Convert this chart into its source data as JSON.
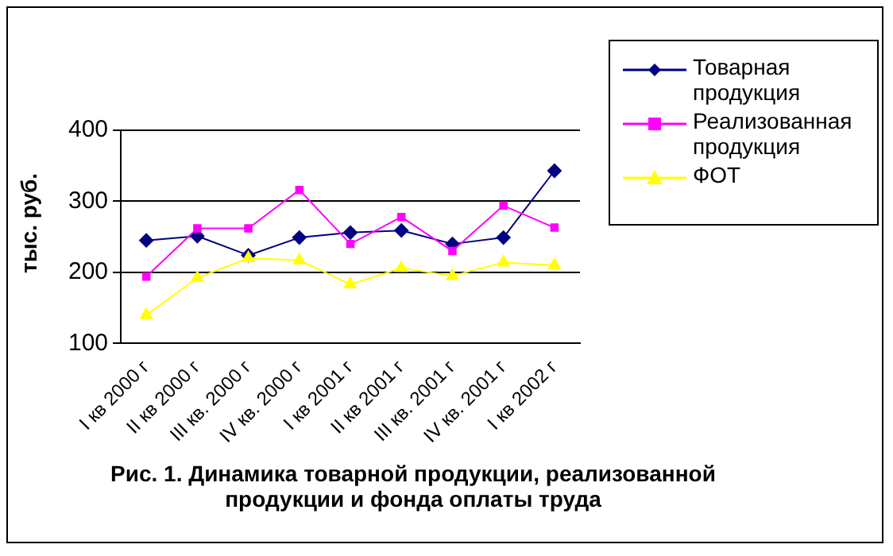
{
  "chart_data": {
    "type": "line",
    "title": "Рис. 1. Динамика товарной продукции, реализованной продукции и фонда оплаты труда",
    "ylabel": "тыс. руб.",
    "categories": [
      "I кв 2000 г",
      "II кв 2000 г",
      "III кв. 2000 г",
      "IV кв. 2000 г",
      "I кв 2001 г",
      "II кв 2001 г",
      "III кв. 2001 г",
      "IV кв. 2001 г",
      "I кв 2002 г"
    ],
    "series": [
      {
        "name": "Товарная продукция",
        "color": "#000080",
        "marker": "diamond",
        "values": [
          245,
          251,
          224,
          249,
          256,
          259,
          240,
          249,
          343
        ]
      },
      {
        "name": "Реализованная продукция",
        "color": "#ff00ff",
        "marker": "square",
        "values": [
          194,
          262,
          262,
          316,
          240,
          278,
          230,
          294,
          263
        ]
      },
      {
        "name": "ФОТ",
        "color": "#ffff00",
        "marker": "triangle",
        "values": [
          140,
          192,
          220,
          217,
          183,
          206,
          195,
          214,
          210
        ]
      }
    ],
    "ylim": [
      100,
      400
    ],
    "yticks": [
      100,
      200,
      300,
      400
    ],
    "grid": "y",
    "legend": "top right"
  }
}
